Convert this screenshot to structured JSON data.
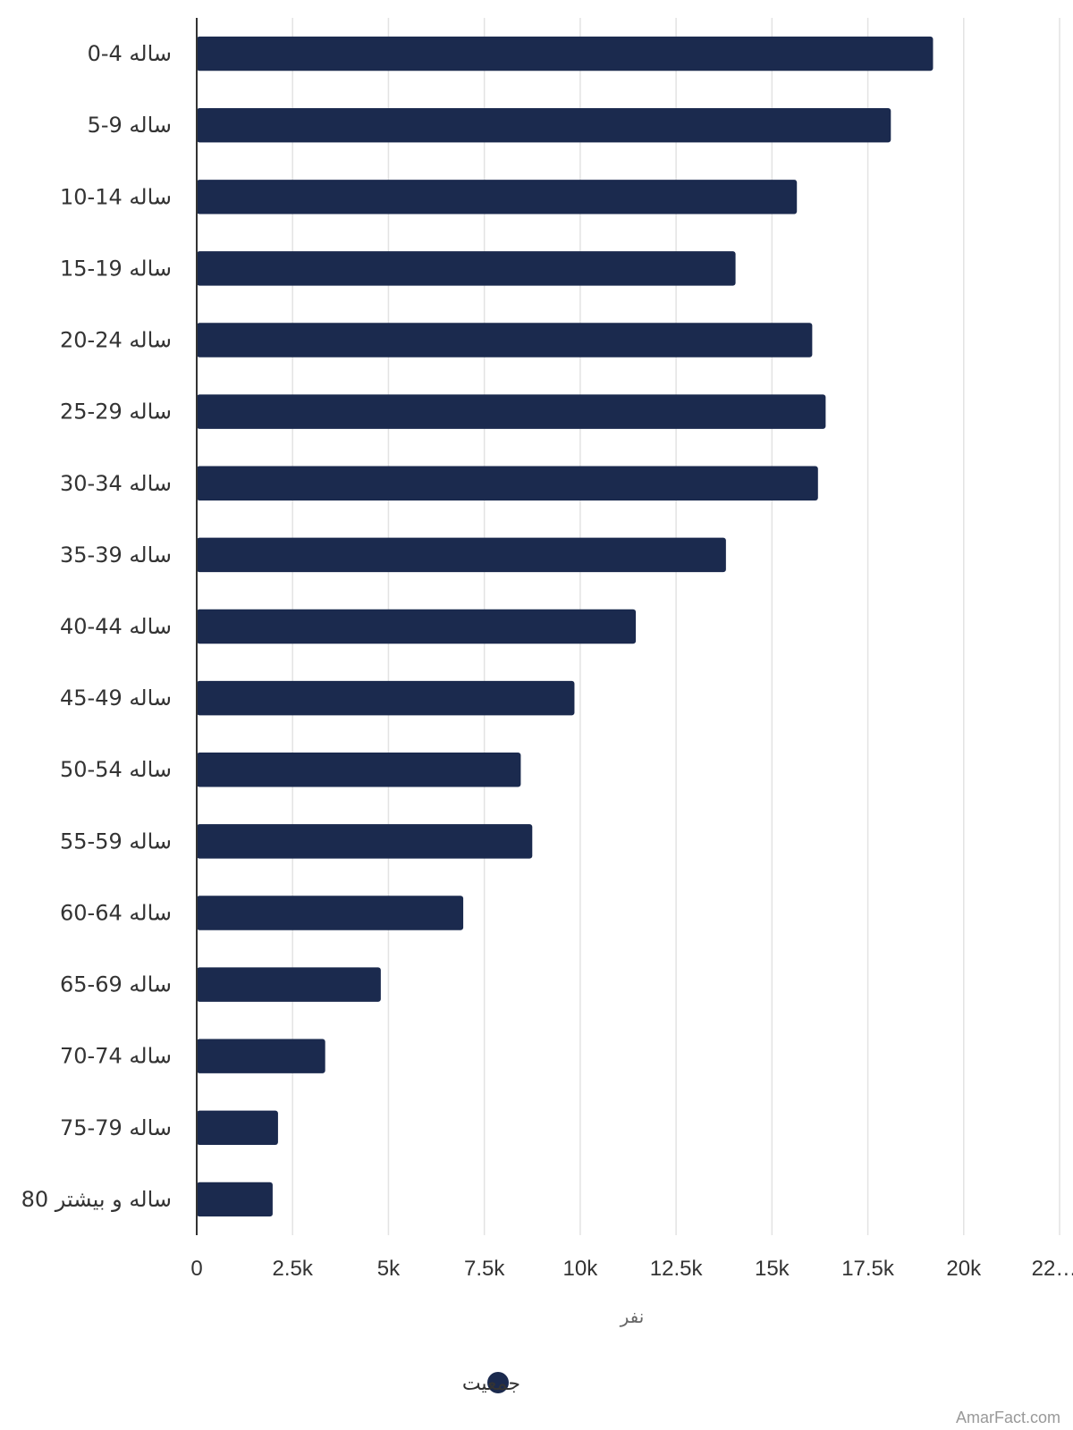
{
  "chart_data": {
    "type": "bar",
    "orientation": "horizontal",
    "categories": [
      "0-4 ساله",
      "5-9 ساله",
      "10-14 ساله",
      "15-19 ساله",
      "20-24 ساله",
      "25-29 ساله",
      "30-34 ساله",
      "35-39 ساله",
      "40-44 ساله",
      "45-49 ساله",
      "50-54 ساله",
      "55-59 ساله",
      "60-64 ساله",
      "65-69 ساله",
      "70-74 ساله",
      "75-79 ساله",
      "80 ساله و بیشتر"
    ],
    "series": [
      {
        "name": "جمعیت",
        "color": "#1b2a4e",
        "values": [
          19200,
          18100,
          15650,
          14050,
          16050,
          16400,
          16200,
          13800,
          11450,
          9850,
          8450,
          8750,
          6950,
          4800,
          3350,
          2120,
          1980
        ]
      }
    ],
    "xlabel": "نفر",
    "ylabel": "",
    "xlim": [
      0,
      22500
    ],
    "xticks": [
      "0",
      "2.5k",
      "5k",
      "7.5k",
      "10k",
      "12.5k",
      "15k",
      "17.5k",
      "20k",
      "22…"
    ],
    "grid": true,
    "legend_position": "bottom-center"
  },
  "watermark": "AmarFact.com",
  "colors": {
    "bar": "#1b2a4e",
    "grid": "#e3e3e3",
    "axis": "#333333"
  }
}
